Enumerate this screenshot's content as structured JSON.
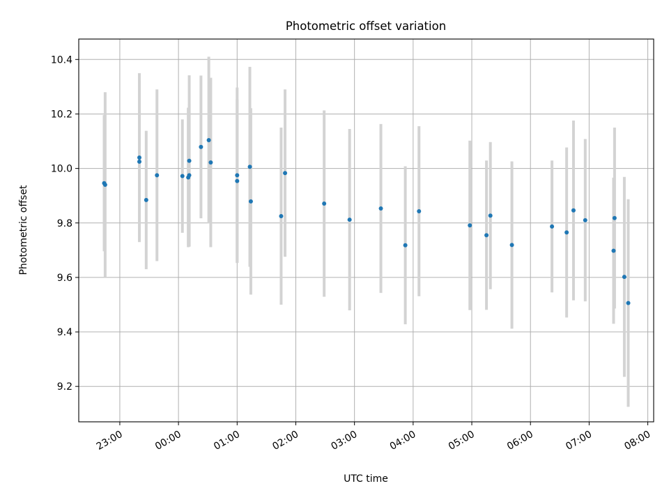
{
  "chart_data": {
    "type": "scatter",
    "title": "Photometric offset variation",
    "xlabel": "UTC time",
    "ylabel": "Photometric offset",
    "x_unit": "hours since 00:00 UTC",
    "xlim": [
      -1.7,
      8.1
    ],
    "ylim": [
      9.07,
      10.475
    ],
    "xticks": [
      {
        "value": -1,
        "label": "23:00"
      },
      {
        "value": 0,
        "label": "00:00"
      },
      {
        "value": 1,
        "label": "01:00"
      },
      {
        "value": 2,
        "label": "02:00"
      },
      {
        "value": 3,
        "label": "03:00"
      },
      {
        "value": 4,
        "label": "04:00"
      },
      {
        "value": 5,
        "label": "05:00"
      },
      {
        "value": 6,
        "label": "06:00"
      },
      {
        "value": 7,
        "label": "07:00"
      },
      {
        "value": 8,
        "label": "08:00"
      }
    ],
    "yticks": [
      {
        "value": 9.2,
        "label": "9.2"
      },
      {
        "value": 9.4,
        "label": "9.4"
      },
      {
        "value": 9.6,
        "label": "9.6"
      },
      {
        "value": 9.8,
        "label": "9.8"
      },
      {
        "value": 10.0,
        "label": "10.0"
      },
      {
        "value": 10.2,
        "label": "10.2"
      },
      {
        "value": 10.4,
        "label": "10.4"
      }
    ],
    "grid": true,
    "point_color": "#1f77b4",
    "errorbar_color": "#d3d3d3",
    "points": [
      {
        "time": "22:44",
        "y": 9.946,
        "err": 0.25
      },
      {
        "time": "22:45",
        "y": 9.94,
        "err": 0.34
      },
      {
        "time": "23:20",
        "y": 10.04,
        "err": 0.31
      },
      {
        "time": "23:20",
        "y": 10.025,
        "err": 0.295
      },
      {
        "time": "23:27",
        "y": 9.884,
        "err": 0.254
      },
      {
        "time": "23:38",
        "y": 9.975,
        "err": 0.315
      },
      {
        "time": "00:04",
        "y": 9.972,
        "err": 0.208
      },
      {
        "time": "00:10",
        "y": 9.967,
        "err": 0.256
      },
      {
        "time": "00:11",
        "y": 10.028,
        "err": 0.314
      },
      {
        "time": "00:11",
        "y": 9.975,
        "err": 0.262
      },
      {
        "time": "00:23",
        "y": 10.079,
        "err": 0.262
      },
      {
        "time": "00:31",
        "y": 10.104,
        "err": 0.306
      },
      {
        "time": "00:33",
        "y": 10.022,
        "err": 0.311
      },
      {
        "time": "01:00",
        "y": 9.975,
        "err": 0.322
      },
      {
        "time": "01:00",
        "y": 9.954,
        "err": 0.3
      },
      {
        "time": "01:13",
        "y": 10.006,
        "err": 0.367
      },
      {
        "time": "01:14",
        "y": 9.879,
        "err": 0.342
      },
      {
        "time": "01:45",
        "y": 9.825,
        "err": 0.325
      },
      {
        "time": "01:49",
        "y": 9.983,
        "err": 0.307
      },
      {
        "time": "02:29",
        "y": 9.871,
        "err": 0.342
      },
      {
        "time": "02:55",
        "y": 9.812,
        "err": 0.333
      },
      {
        "time": "03:27",
        "y": 9.853,
        "err": 0.31
      },
      {
        "time": "03:52",
        "y": 9.718,
        "err": 0.29
      },
      {
        "time": "04:06",
        "y": 9.843,
        "err": 0.312
      },
      {
        "time": "04:58",
        "y": 9.791,
        "err": 0.311
      },
      {
        "time": "05:15",
        "y": 9.755,
        "err": 0.274
      },
      {
        "time": "05:19",
        "y": 9.827,
        "err": 0.27
      },
      {
        "time": "05:41",
        "y": 9.719,
        "err": 0.307
      },
      {
        "time": "06:22",
        "y": 9.787,
        "err": 0.242
      },
      {
        "time": "06:37",
        "y": 9.765,
        "err": 0.312
      },
      {
        "time": "06:44",
        "y": 9.846,
        "err": 0.33
      },
      {
        "time": "06:56",
        "y": 9.81,
        "err": 0.298
      },
      {
        "time": "07:25",
        "y": 9.698,
        "err": 0.268
      },
      {
        "time": "07:26",
        "y": 9.818,
        "err": 0.332
      },
      {
        "time": "07:36",
        "y": 9.602,
        "err": 0.367
      },
      {
        "time": "07:40",
        "y": 9.506,
        "err": 0.381
      }
    ]
  }
}
